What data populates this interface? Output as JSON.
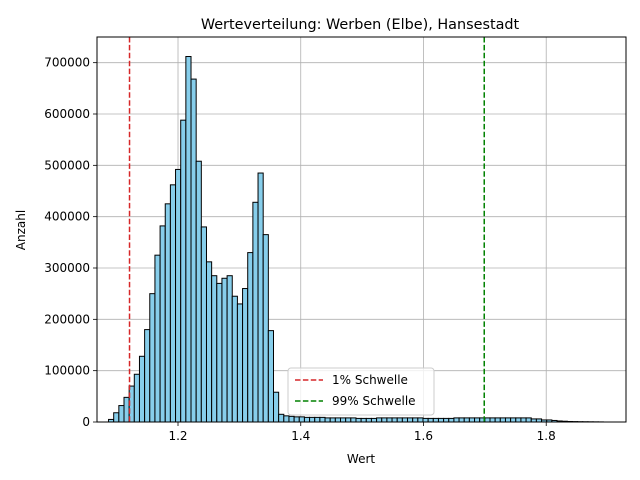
{
  "chart_data": {
    "type": "bar",
    "subtype": "histogram",
    "title": "Werteverteilung: Werben (Elbe), Hansestadt",
    "xlabel": "Wert",
    "ylabel": "Anzahl",
    "xlim": [
      1.068,
      1.93
    ],
    "ylim": [
      0,
      750000
    ],
    "x_ticks": [
      1.2,
      1.4,
      1.6,
      1.8
    ],
    "x_tick_labels": [
      "1.2",
      "1.4",
      "1.6",
      "1.8"
    ],
    "y_ticks": [
      0,
      100000,
      200000,
      300000,
      400000,
      500000,
      600000,
      700000
    ],
    "y_tick_labels": [
      "0",
      "100000",
      "200000",
      "300000",
      "400000",
      "500000",
      "600000",
      "700000"
    ],
    "grid": true,
    "bin_start": 1.0868,
    "bin_width": 0.0084,
    "bar_color": "#87ceeb",
    "bar_edge_color": "#000000",
    "counts": [
      5000,
      18000,
      32000,
      48000,
      70000,
      93000,
      128000,
      180000,
      250000,
      325000,
      382000,
      425000,
      462000,
      492000,
      588000,
      712000,
      668000,
      508000,
      380000,
      312000,
      285000,
      270000,
      280000,
      285000,
      245000,
      230000,
      260000,
      330000,
      428000,
      485000,
      365000,
      178000,
      58000,
      15000,
      12000,
      11000,
      10000,
      10000,
      9000,
      9000,
      9000,
      9000,
      8000,
      8000,
      8000,
      8000,
      8000,
      8000,
      7000,
      7000,
      7000,
      7000,
      8000,
      8000,
      8000,
      8000,
      8000,
      8000,
      8000,
      8000,
      8000,
      7000,
      7000,
      7000,
      7000,
      7000,
      7000,
      8000,
      8000,
      8000,
      8000,
      8000,
      8000,
      8000,
      8000,
      8000,
      8000,
      8000,
      8000,
      8000,
      8000,
      8000,
      6000,
      6000,
      4000,
      4000,
      3000,
      2000,
      1500,
      1000,
      800,
      600,
      500,
      400,
      300,
      200
    ],
    "thresholds": [
      {
        "name": "1% Schwelle",
        "x": 1.121,
        "color": "#d62728"
      },
      {
        "name": "99% Schwelle",
        "x": 1.699,
        "color": "#008000"
      }
    ],
    "legend_position": "lower-center"
  }
}
